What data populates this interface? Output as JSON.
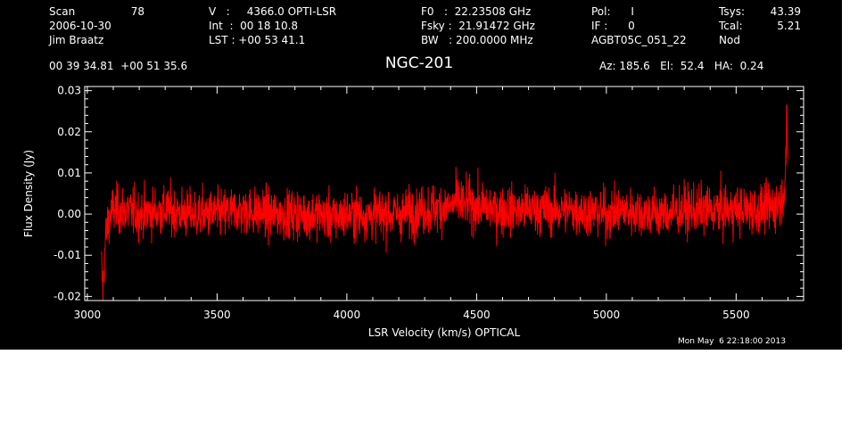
{
  "header": {
    "scan_label": "Scan",
    "scan_number": "78",
    "date": "2006-10-30",
    "observer": "Jim Braatz",
    "velocity": "V   :     4366.0 OPTI-LSR",
    "integration": "Int  :  00 18 10.8",
    "lst": "LST : +00 53 41.1",
    "f0": "F0   :  22.23508 GHz",
    "fsky": "Fsky :  21.91472 GHz",
    "bw": "BW   : 200.0000 MHz",
    "pol": "Pol:      I",
    "if": "IF :      0",
    "project": "AGBT05C_051_22",
    "tsys_label": "Tsys:",
    "tsys_value": "43.39",
    "tcal_label": "Tcal:",
    "tcal_value": "5.21",
    "mode": "Nod",
    "coordinates": "00 39 34.81  +00 51 35.6",
    "source": "NGC-201",
    "az_el_ha": "Az: 185.6   El:  52.4   HA:  0.24"
  },
  "timestamp": "Mon May  6 22:18:00 2013",
  "colors": {
    "background": "#000000",
    "axes": "#ffffff",
    "series": "#ff0000"
  },
  "chart_data": {
    "type": "line",
    "xlabel": "LSR Velocity (km/s) OPTICAL",
    "ylabel": "Flux Density (Jy)",
    "xlim": [
      2990,
      5760
    ],
    "ylim": [
      -0.021,
      0.031
    ],
    "x_ticks": [
      3000,
      3500,
      4000,
      4500,
      5000,
      5500
    ],
    "y_ticks": [
      -0.02,
      -0.01,
      0.0,
      0.01,
      0.02,
      0.03
    ],
    "x_tick_labels": [
      "3000",
      "3500",
      "4000",
      "4500",
      "5000",
      "5500"
    ],
    "y_tick_labels": [
      "-0.02",
      "-0.01",
      "0.00",
      "0.01",
      "0.02",
      "0.03"
    ],
    "grid": false,
    "series": [
      {
        "x": [
          3055,
          3060,
          3065,
          3070,
          3080,
          3090,
          3100,
          3150,
          3200,
          3300,
          3400,
          3500,
          3600,
          3700,
          3800,
          3900,
          3950,
          4000,
          4100,
          4200,
          4300,
          4400,
          4420,
          4500,
          4600,
          4700,
          4800,
          4900,
          5000,
          5100,
          5200,
          5300,
          5400,
          5500,
          5600,
          5650,
          5680,
          5690,
          5695,
          5700
        ],
        "values": [
          -0.013,
          -0.019,
          -0.012,
          -0.006,
          -0.002,
          0.0,
          0.001,
          0.001,
          0.0,
          0.001,
          0.0,
          0.0,
          0.001,
          0.0,
          0.0,
          0.0,
          -0.001,
          0.0,
          0.0,
          0.0,
          0.001,
          0.002,
          0.003,
          0.002,
          0.001,
          0.001,
          0.001,
          0.001,
          0.0,
          0.001,
          0.0,
          0.001,
          0.001,
          0.001,
          0.001,
          0.002,
          0.004,
          0.01,
          0.021,
          0.012
        ]
      }
    ]
  }
}
